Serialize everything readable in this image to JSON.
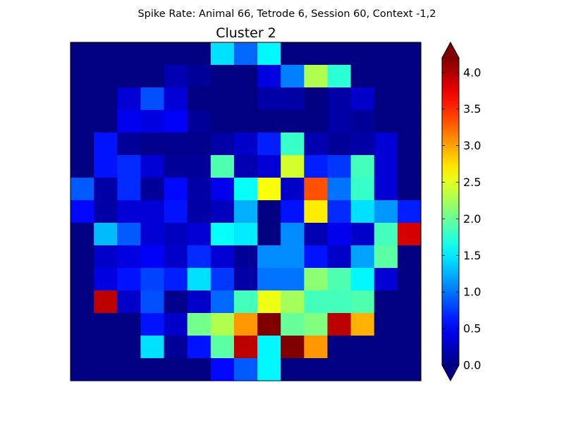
{
  "figure": {
    "suptitle": "Spike Rate: Animal 66, Tetrode 6, Session 60, Context -1,2"
  },
  "chart_data": {
    "type": "heatmap",
    "title": "Cluster 2",
    "xlabel": "",
    "ylabel": "",
    "colormap": "jet",
    "colorbar": {
      "vmin": 0.0,
      "vmax": 4.2,
      "extend": "both",
      "ticks": [
        0.0,
        0.5,
        1.0,
        1.5,
        2.0,
        2.5,
        3.0,
        3.5,
        4.0
      ],
      "tick_labels": [
        "0.0",
        "0.5",
        "1.0",
        "1.5",
        "2.0",
        "2.5",
        "3.0",
        "3.5",
        "4.0"
      ]
    },
    "rows": 15,
    "cols": 15,
    "values": [
      [
        0,
        0,
        0,
        0,
        0,
        0,
        1.45,
        0.95,
        1.55,
        0,
        0,
        0,
        0,
        0,
        0
      ],
      [
        0,
        0,
        0,
        0,
        0.2,
        0.1,
        0,
        0,
        0.4,
        1.05,
        2.3,
        1.75,
        0,
        0,
        0
      ],
      [
        0,
        0,
        0.35,
        0.85,
        0.35,
        0,
        0,
        0,
        0.15,
        0.15,
        0,
        0.15,
        0.3,
        0,
        0
      ],
      [
        0,
        0,
        0.45,
        0.4,
        0.5,
        0.1,
        0,
        0,
        0,
        0,
        0,
        0.15,
        0.1,
        0,
        0
      ],
      [
        0,
        0.6,
        0.1,
        0.05,
        0.05,
        0.05,
        0.15,
        0.3,
        0.65,
        1.8,
        0.2,
        0.1,
        0.15,
        0.35,
        0
      ],
      [
        0,
        0.6,
        0.7,
        0.35,
        0.1,
        0.1,
        1.9,
        0.2,
        0.35,
        2.45,
        0.65,
        0.75,
        1.85,
        0.35,
        0
      ],
      [
        0.9,
        0.15,
        0.7,
        0.1,
        0.55,
        0.15,
        0.45,
        1.6,
        2.6,
        0.3,
        3.35,
        1.0,
        1.8,
        0.35,
        0
      ],
      [
        0.55,
        0.15,
        0.35,
        0.35,
        0.6,
        0.15,
        0.25,
        1.25,
        0,
        0.6,
        2.7,
        0.7,
        1.45,
        1.15,
        0.65
      ],
      [
        0,
        1.3,
        0.9,
        0.35,
        0.25,
        0.35,
        1.6,
        1.5,
        0,
        1.1,
        0.2,
        0.45,
        0.3,
        1.85,
        3.85
      ],
      [
        0,
        0.3,
        0.4,
        0.5,
        0.3,
        0.7,
        0.35,
        0.1,
        1.1,
        1.1,
        0.6,
        0.3,
        1.2,
        1.95,
        0
      ],
      [
        0,
        0.4,
        0.6,
        0.8,
        0.65,
        1.45,
        0.75,
        0.15,
        1.0,
        1.0,
        2.15,
        1.9,
        1.55,
        0.35,
        0
      ],
      [
        0,
        3.95,
        0.3,
        0.85,
        0.05,
        0.3,
        0.95,
        1.85,
        2.55,
        2.25,
        1.85,
        1.85,
        1.9,
        0,
        0
      ],
      [
        0,
        0,
        0,
        0.6,
        0.3,
        2.05,
        2.3,
        3.05,
        4.3,
        2.0,
        2.1,
        3.95,
        2.95,
        0,
        0
      ],
      [
        0,
        0,
        0,
        1.45,
        0.1,
        0.6,
        1.95,
        3.95,
        1.55,
        4.3,
        3.05,
        0,
        0,
        0,
        0
      ],
      [
        0,
        0,
        0,
        0,
        0,
        0,
        0.55,
        0.9,
        1.55,
        0,
        0,
        0,
        0,
        0,
        0
      ]
    ]
  }
}
